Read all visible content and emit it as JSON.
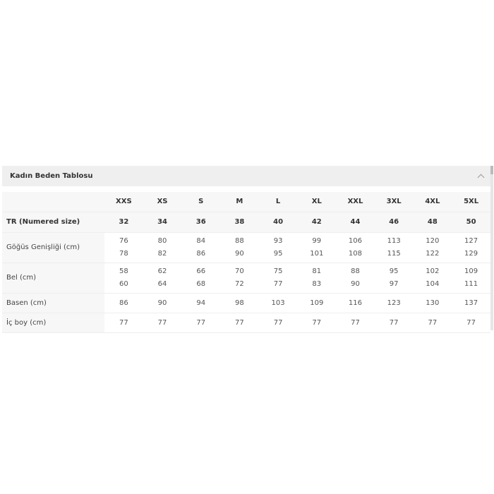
{
  "accordion": {
    "title": "Kadın Beden Tablosu",
    "icon": "chevron-up-icon",
    "expanded": true
  },
  "table": {
    "sizes": [
      "XXS",
      "XS",
      "S",
      "M",
      "L",
      "XL",
      "XXL",
      "3XL",
      "4XL",
      "5XL"
    ],
    "rows": [
      {
        "label": "TR (Numered size)",
        "values": [
          "32",
          "34",
          "36",
          "38",
          "40",
          "42",
          "44",
          "46",
          "48",
          "50"
        ]
      },
      {
        "label": "Göğüs Genişliği (cm)",
        "values": [
          [
            "76",
            "78"
          ],
          [
            "80",
            "82"
          ],
          [
            "84",
            "86"
          ],
          [
            "88",
            "90"
          ],
          [
            "93",
            "95"
          ],
          [
            "99",
            "101"
          ],
          [
            "106",
            "108"
          ],
          [
            "113",
            "115"
          ],
          [
            "120",
            "122"
          ],
          [
            "127",
            "129"
          ]
        ]
      },
      {
        "label": "Bel (cm)",
        "values": [
          [
            "58",
            "60"
          ],
          [
            "62",
            "64"
          ],
          [
            "66",
            "68"
          ],
          [
            "70",
            "72"
          ],
          [
            "75",
            "77"
          ],
          [
            "81",
            "83"
          ],
          [
            "88",
            "90"
          ],
          [
            "95",
            "97"
          ],
          [
            "102",
            "104"
          ],
          [
            "109",
            "111"
          ]
        ]
      },
      {
        "label": "Basen (cm)",
        "values": [
          "86",
          "90",
          "94",
          "98",
          "103",
          "109",
          "116",
          "123",
          "130",
          "137"
        ]
      },
      {
        "label": "İç boy (cm)",
        "values": [
          "77",
          "77",
          "77",
          "77",
          "77",
          "77",
          "77",
          "77",
          "77",
          "77"
        ]
      }
    ]
  }
}
